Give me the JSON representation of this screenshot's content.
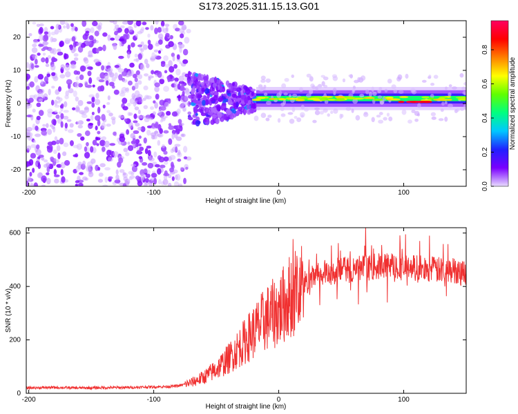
{
  "title": "S173.2025.311.15.13.G01",
  "chart_data": [
    {
      "type": "heatmap",
      "title": "S173.2025.311.15.13.G01",
      "xlabel": "Height of straight line (km)",
      "ylabel": "Frequency (Hz)",
      "xlim": [
        -202,
        150
      ],
      "ylim": [
        -25,
        25
      ],
      "xticks": [
        -200,
        -100,
        0,
        100
      ],
      "yticks": [
        -20,
        -10,
        0,
        10,
        20
      ],
      "colorbar": {
        "label": "Normalized spectral amplitude",
        "range": [
          0,
          0.97
        ],
        "ticks": [
          0.0,
          0.2,
          0.4,
          0.6,
          0.8
        ],
        "colors": [
          "#e8dcff",
          "#7a00ff",
          "#2020ff",
          "#00c8ff",
          "#00ff80",
          "#60ff00",
          "#ffff00",
          "#ff8000",
          "#ff0000",
          "#ff0060"
        ]
      },
      "features": [
        {
          "name": "scattered noise",
          "x_range": [
            -202,
            -72
          ],
          "freq_range": [
            -25,
            25
          ],
          "amplitude": 0.05
        },
        {
          "name": "transition cluster",
          "x_range": [
            -72,
            -18
          ],
          "freq_range": [
            -12,
            10
          ],
          "amplitude": 0.15
        },
        {
          "name": "signal band",
          "x_range": [
            -18,
            150
          ],
          "freq_center": 1.5,
          "amplitude": 0.55
        },
        {
          "name": "peak band",
          "x_range": [
            95,
            120
          ],
          "freq_center": 0.5,
          "amplitude": 0.85
        }
      ]
    },
    {
      "type": "line",
      "xlabel": "Height of straight line (km)",
      "ylabel": "SNR (10 * v/v)",
      "xlim": [
        -202,
        150
      ],
      "ylim": [
        0,
        620
      ],
      "xticks": [
        -200,
        -100,
        0,
        100
      ],
      "yticks": [
        0,
        200,
        400,
        600
      ],
      "series": [
        {
          "name": "SNR",
          "color": "#f03030",
          "x": [
            -202,
            -180,
            -160,
            -140,
            -120,
            -100,
            -90,
            -80,
            -70,
            -60,
            -50,
            -40,
            -30,
            -20,
            -10,
            0,
            10,
            20,
            30,
            40,
            50,
            60,
            70,
            80,
            90,
            100,
            110,
            120,
            130,
            140,
            150
          ],
          "y": [
            20,
            22,
            20,
            21,
            22,
            24,
            25,
            28,
            40,
            60,
            90,
            130,
            180,
            230,
            280,
            310,
            370,
            410,
            440,
            455,
            460,
            465,
            470,
            475,
            480,
            470,
            470,
            465,
            460,
            460,
            455
          ]
        }
      ]
    }
  ]
}
